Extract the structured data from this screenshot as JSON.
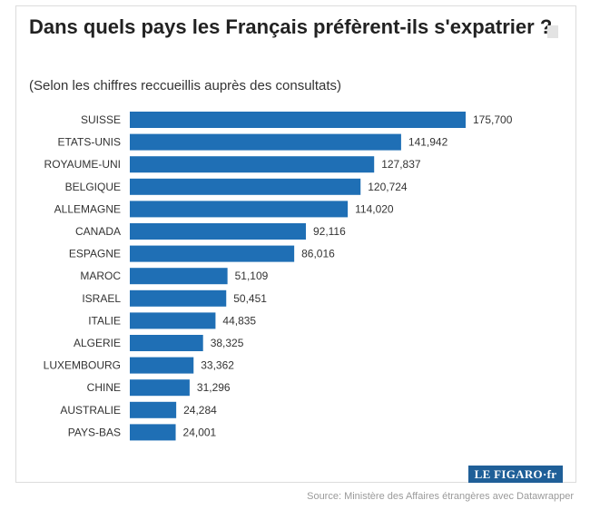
{
  "title": "Dans quels pays les Français préfèrent-ils s'expatrier ?",
  "subtitle": "(Selon les chiffres reccueillis auprès des consultats)",
  "logo": "LE FIGARO·fr",
  "source": "Source: Ministère des Affaires étrangères avec Datawrapper",
  "colors": {
    "bar": "#1f6fb5",
    "text": "#333333",
    "logo_bg": "#1f5f98"
  },
  "chart_data": {
    "type": "bar",
    "orientation": "horizontal",
    "categories": [
      "SUISSE",
      "ETATS-UNIS",
      "ROYAUME-UNI",
      "BELGIQUE",
      "ALLEMAGNE",
      "CANADA",
      "ESPAGNE",
      "MAROC",
      "ISRAEL",
      "ITALIE",
      "ALGERIE",
      "LUXEMBOURG",
      "CHINE",
      "AUSTRALIE",
      "PAYS-BAS"
    ],
    "values": [
      175700,
      141942,
      127837,
      120724,
      114020,
      92116,
      86016,
      51109,
      50451,
      44835,
      38325,
      33362,
      31296,
      24284,
      24001
    ],
    "value_labels": [
      "175,700",
      "141,942",
      "127,837",
      "120,724",
      "114,020",
      "92,116",
      "86,016",
      "51,109",
      "50,451",
      "44,835",
      "38,325",
      "33,362",
      "31,296",
      "24,284",
      "24,001"
    ],
    "title": "Dans quels pays les Français préfèrent-ils s'expatrier ?",
    "xlabel": "",
    "ylabel": "",
    "xlim": [
      0,
      175700
    ],
    "grid": false,
    "legend": "none"
  }
}
